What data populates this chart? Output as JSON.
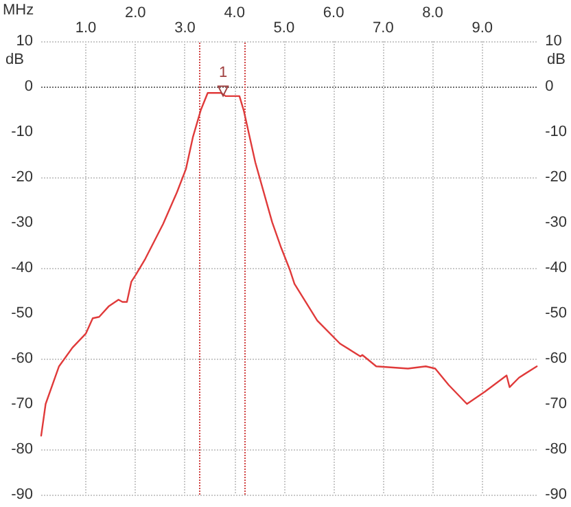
{
  "chart_data": {
    "type": "line",
    "xlabel": "MHz",
    "ylabel": "dB",
    "y2label": "dB",
    "x": [
      0.1,
      0.19,
      0.46,
      0.73,
      1.0,
      1.14,
      1.27,
      1.46,
      1.66,
      1.74,
      1.83,
      1.92,
      2.01,
      2.2,
      2.56,
      2.84,
      3.02,
      3.16,
      3.32,
      3.46,
      3.73,
      3.82,
      4.1,
      4.19,
      4.42,
      4.76,
      4.94,
      5.12,
      5.21,
      5.67,
      6.13,
      6.54,
      6.58,
      6.86,
      7.5,
      7.86,
      8.05,
      8.32,
      8.69,
      9.05,
      9.49,
      9.55,
      9.74,
      10.1
    ],
    "series": [
      {
        "color": "#e03a3a",
        "values": [
          -77,
          -70,
          -61.7,
          -57.6,
          -54.5,
          -51.1,
          -50.8,
          -48.5,
          -47,
          -47.5,
          -47.5,
          -43,
          -41.5,
          -38,
          -30.3,
          -23.3,
          -18.2,
          -11.2,
          -5.2,
          -1.4,
          -1.4,
          -2.1,
          -2.1,
          -5.4,
          -16.7,
          -29.9,
          -35.5,
          -40.5,
          -43.5,
          -51.6,
          -56.7,
          -59.5,
          -59.2,
          -61.7,
          -62.2,
          -61.7,
          -62.2,
          -65.8,
          -70,
          -67.3,
          -63.7,
          -66.3,
          -64.2,
          -61.7
        ]
      }
    ],
    "xlim": [
      0.1,
      10.1
    ],
    "xticks": [
      {
        "value": 1,
        "label": "1.0"
      },
      {
        "value": 3,
        "label": "3.0"
      },
      {
        "value": 5,
        "label": "5.0"
      },
      {
        "value": 7,
        "label": "7.0"
      },
      {
        "value": 9,
        "label": "9.0"
      }
    ],
    "x2lim": [
      0.1,
      10.1
    ],
    "x2ticks": [
      {
        "value": 2,
        "label": "2.0"
      },
      {
        "value": 4,
        "label": "4.0"
      },
      {
        "value": 6,
        "label": "6.0"
      },
      {
        "value": 8,
        "label": "8.0"
      }
    ],
    "ylim": [
      -90,
      10
    ],
    "yticks": [
      -90,
      -80,
      -70,
      -60,
      -50,
      -40,
      -30,
      -20,
      -10,
      0,
      10
    ],
    "y2lim": [
      -90,
      10
    ],
    "y2ticks": [
      -90,
      -80,
      -70,
      -60,
      -50,
      -40,
      -30,
      -20,
      -10,
      0,
      10
    ],
    "ref_lines": [
      {
        "axis": "y",
        "value": 0,
        "color": "#707070",
        "line_style": "dotted"
      },
      {
        "axis": "x",
        "value": 3.3,
        "color": "#d04040",
        "line_style": "dotted"
      },
      {
        "axis": "x",
        "value": 4.2,
        "color": "#d04040",
        "line_style": "dotted"
      }
    ],
    "annotations": [
      {
        "text": "1",
        "x": 3.77,
        "y": -1
      }
    ],
    "grid": true,
    "marker": "none",
    "line_style": "solid"
  }
}
